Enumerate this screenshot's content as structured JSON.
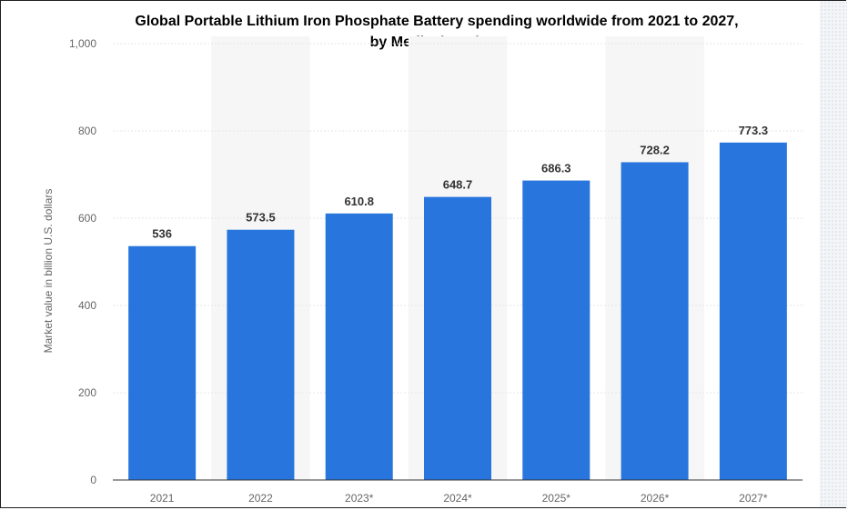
{
  "chart_data": {
    "type": "bar",
    "title": [
      "Global Portable Lithium Iron Phosphate Battery spending worldwide from 2021 to 2027,",
      "by Medical Devices"
    ],
    "xlabel": "",
    "ylabel": "Market value in billion U.S. dollars",
    "categories": [
      "2021",
      "2022",
      "2023*",
      "2024*",
      "2025*",
      "2026*",
      "2027*"
    ],
    "values": [
      536,
      573.5,
      610.8,
      648.7,
      686.3,
      728.2,
      773.3
    ],
    "value_labels": [
      "536",
      "573.5",
      "610.8",
      "648.7",
      "686.3",
      "728.2",
      "773.3"
    ],
    "ylim": [
      0,
      1000
    ],
    "yticks": [
      0,
      200,
      400,
      600,
      800,
      1000
    ],
    "ytick_labels": [
      "0",
      "200",
      "400",
      "600",
      "800",
      "1,000"
    ],
    "grid": true,
    "legend": "none",
    "colors": {
      "bar": "#2876dd",
      "band": "#f6f6f6",
      "grid": "#e6e6e6",
      "axis": "#333333"
    }
  }
}
